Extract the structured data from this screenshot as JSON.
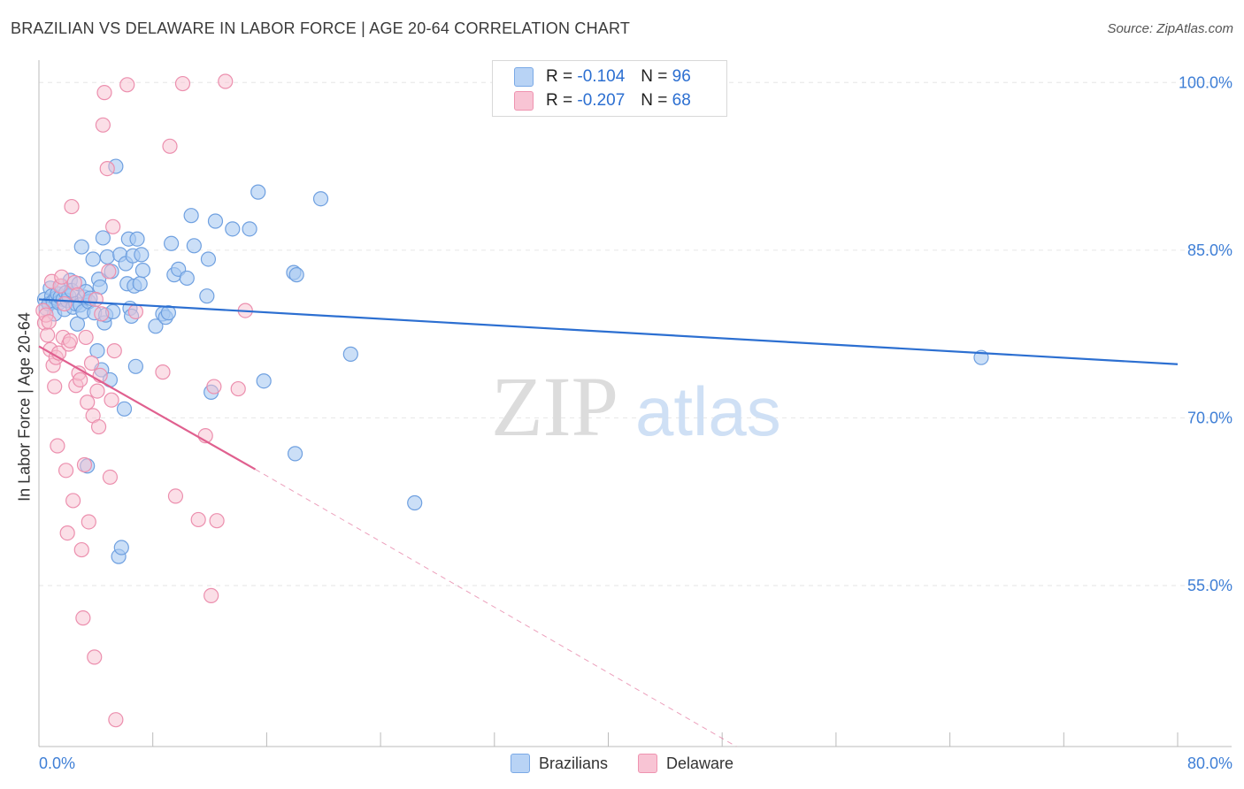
{
  "title": "BRAZILIAN VS DELAWARE IN LABOR FORCE | AGE 20-64 CORRELATION CHART",
  "source": "Source: ZipAtlas.com",
  "watermark": {
    "zip": "ZIP",
    "atlas": "atlas"
  },
  "colors": {
    "blue_fill": "#a9c9f2",
    "blue_stroke": "#6fa0e0",
    "blue_line": "#2c6fd1",
    "pink_fill": "#f8bfd0",
    "pink_stroke": "#ec8fae",
    "pink_line": "#e0608f",
    "axis_text": "#3f7fd6"
  },
  "legend_top": [
    {
      "r_label": "R =",
      "r_value": "-0.104",
      "n_label": "N =",
      "n_value": "96"
    },
    {
      "r_label": "R =",
      "r_value": "-0.207",
      "n_label": "N =",
      "n_value": "68"
    }
  ],
  "legend_bottom": [
    {
      "label": "Brazilians"
    },
    {
      "label": "Delaware"
    }
  ],
  "chart_data": {
    "type": "scatter",
    "title": "BRAZILIAN VS DELAWARE IN LABOR FORCE | AGE 20-64 CORRELATION CHART",
    "xlabel": "",
    "ylabel": "In Labor Force | Age 20-64",
    "xlim": [
      0,
      80
    ],
    "ylim": [
      40.6,
      102
    ],
    "x_tick_labels": [
      {
        "value": 0,
        "label": "0.0%"
      },
      {
        "value": 80,
        "label": "80.0%"
      }
    ],
    "y_tick_labels": [
      {
        "value": 100,
        "label": "100.0%"
      },
      {
        "value": 85,
        "label": "85.0%"
      },
      {
        "value": 70,
        "label": "70.0%"
      },
      {
        "value": 55,
        "label": "55.0%"
      }
    ],
    "series": [
      {
        "name": "Brazilians",
        "trend": {
          "x": [
            0,
            80
          ],
          "y": [
            80.6,
            74.8
          ]
        },
        "points": [
          [
            0.4,
            80.6
          ],
          [
            0.5,
            79.8
          ],
          [
            0.7,
            80.2
          ],
          [
            0.8,
            81.6
          ],
          [
            0.9,
            80.9
          ],
          [
            1.0,
            80.4
          ],
          [
            1.1,
            79.3
          ],
          [
            1.2,
            80.7
          ],
          [
            1.3,
            81.1
          ],
          [
            1.4,
            80.3
          ],
          [
            1.5,
            80.8
          ],
          [
            1.6,
            81.8
          ],
          [
            1.7,
            80.6
          ],
          [
            1.8,
            79.7
          ],
          [
            1.9,
            81.2
          ],
          [
            2.0,
            80.5
          ],
          [
            2.1,
            80.9
          ],
          [
            2.2,
            82.3
          ],
          [
            2.3,
            81.4
          ],
          [
            2.4,
            79.9
          ],
          [
            2.6,
            80.2
          ],
          [
            2.7,
            78.4
          ],
          [
            2.8,
            82.0
          ],
          [
            2.9,
            80.1
          ],
          [
            3.0,
            85.3
          ],
          [
            3.1,
            79.5
          ],
          [
            3.2,
            80.8
          ],
          [
            3.3,
            81.3
          ],
          [
            3.4,
            65.7
          ],
          [
            3.5,
            80.4
          ],
          [
            3.6,
            80.7
          ],
          [
            3.8,
            84.2
          ],
          [
            3.9,
            79.4
          ],
          [
            4.1,
            76.0
          ],
          [
            4.2,
            82.4
          ],
          [
            4.3,
            81.7
          ],
          [
            4.4,
            74.3
          ],
          [
            4.5,
            86.1
          ],
          [
            4.6,
            78.5
          ],
          [
            4.7,
            79.2
          ],
          [
            4.8,
            84.4
          ],
          [
            5.0,
            73.4
          ],
          [
            5.1,
            83.1
          ],
          [
            5.2,
            79.5
          ],
          [
            5.4,
            92.5
          ],
          [
            5.6,
            57.6
          ],
          [
            5.7,
            84.6
          ],
          [
            5.8,
            58.4
          ],
          [
            6.0,
            70.8
          ],
          [
            6.1,
            83.8
          ],
          [
            6.2,
            82.0
          ],
          [
            6.3,
            86.0
          ],
          [
            6.4,
            79.8
          ],
          [
            6.5,
            79.1
          ],
          [
            6.6,
            84.5
          ],
          [
            6.7,
            81.8
          ],
          [
            6.8,
            74.6
          ],
          [
            6.9,
            86.0
          ],
          [
            7.1,
            82.0
          ],
          [
            7.2,
            84.6
          ],
          [
            7.3,
            83.2
          ],
          [
            8.2,
            78.2
          ],
          [
            8.7,
            79.3
          ],
          [
            8.9,
            79.0
          ],
          [
            9.1,
            79.4
          ],
          [
            9.3,
            85.6
          ],
          [
            9.5,
            82.8
          ],
          [
            9.8,
            83.3
          ],
          [
            10.4,
            82.5
          ],
          [
            10.7,
            88.1
          ],
          [
            10.9,
            85.4
          ],
          [
            11.8,
            80.9
          ],
          [
            11.9,
            84.2
          ],
          [
            12.1,
            72.3
          ],
          [
            12.4,
            87.6
          ],
          [
            13.6,
            86.9
          ],
          [
            14.8,
            86.9
          ],
          [
            15.4,
            90.2
          ],
          [
            15.8,
            73.3
          ],
          [
            17.9,
            83.0
          ],
          [
            18.0,
            66.8
          ],
          [
            18.1,
            82.8
          ],
          [
            19.8,
            89.6
          ],
          [
            21.9,
            75.7
          ],
          [
            26.4,
            62.4
          ],
          [
            66.2,
            75.4
          ]
        ]
      },
      {
        "name": "Delaware",
        "trend": {
          "x": [
            0,
            15.2
          ],
          "y": [
            76.4,
            65.4
          ]
        },
        "trend_dashed": {
          "x": [
            15.2,
            49
          ],
          "y": [
            65.4,
            40.6
          ]
        },
        "points": [
          [
            0.3,
            79.6
          ],
          [
            0.4,
            78.5
          ],
          [
            0.5,
            79.2
          ],
          [
            0.6,
            77.4
          ],
          [
            0.7,
            78.6
          ],
          [
            0.8,
            76.1
          ],
          [
            0.9,
            82.2
          ],
          [
            1.0,
            74.7
          ],
          [
            1.1,
            72.8
          ],
          [
            1.2,
            75.4
          ],
          [
            1.3,
            67.5
          ],
          [
            1.4,
            75.8
          ],
          [
            1.5,
            81.8
          ],
          [
            1.6,
            82.6
          ],
          [
            1.7,
            77.2
          ],
          [
            1.8,
            80.2
          ],
          [
            1.9,
            65.3
          ],
          [
            2.0,
            59.7
          ],
          [
            2.1,
            76.6
          ],
          [
            2.2,
            76.9
          ],
          [
            2.3,
            88.9
          ],
          [
            2.4,
            62.6
          ],
          [
            2.5,
            82.1
          ],
          [
            2.6,
            72.9
          ],
          [
            2.7,
            81.0
          ],
          [
            2.8,
            74.0
          ],
          [
            2.9,
            73.4
          ],
          [
            3.0,
            58.2
          ],
          [
            3.1,
            52.1
          ],
          [
            3.2,
            65.8
          ],
          [
            3.3,
            77.2
          ],
          [
            3.4,
            71.4
          ],
          [
            3.5,
            60.7
          ],
          [
            3.7,
            74.9
          ],
          [
            3.8,
            70.2
          ],
          [
            3.9,
            48.6
          ],
          [
            4.0,
            80.6
          ],
          [
            4.1,
            72.4
          ],
          [
            4.2,
            69.2
          ],
          [
            4.3,
            73.8
          ],
          [
            4.4,
            79.3
          ],
          [
            4.5,
            96.2
          ],
          [
            4.6,
            99.1
          ],
          [
            4.8,
            92.3
          ],
          [
            4.9,
            83.1
          ],
          [
            5.0,
            64.7
          ],
          [
            5.1,
            71.6
          ],
          [
            5.2,
            87.1
          ],
          [
            5.3,
            76.0
          ],
          [
            5.4,
            43.0
          ],
          [
            6.2,
            99.8
          ],
          [
            6.8,
            79.5
          ],
          [
            8.7,
            74.1
          ],
          [
            9.2,
            94.3
          ],
          [
            9.6,
            63.0
          ],
          [
            10.1,
            99.9
          ],
          [
            11.2,
            60.9
          ],
          [
            11.7,
            68.4
          ],
          [
            12.1,
            54.1
          ],
          [
            12.3,
            72.8
          ],
          [
            12.5,
            60.8
          ],
          [
            13.1,
            100.1
          ],
          [
            14.0,
            72.6
          ],
          [
            14.5,
            79.6
          ]
        ]
      }
    ]
  }
}
